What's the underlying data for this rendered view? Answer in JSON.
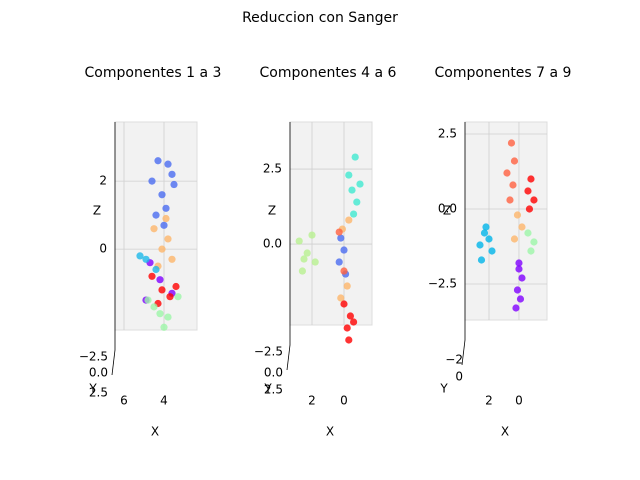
{
  "chart_data": {
    "title": "Reduccion con Sanger",
    "charts": [
      {
        "type": "scatter",
        "title": "Componentes 1 a 3",
        "xlabel": "X",
        "ylabel": "Y",
        "zlabel": "Z",
        "xlim": [
          6.45,
          2.35
        ],
        "xticks": [
          6,
          4
        ],
        "zlim": [
          -2.38,
          3.74
        ],
        "zticks": [
          2,
          0
        ],
        "yticks": [
          {
            "value": -2.5,
            "label": "−2.5"
          },
          {
            "value": 0,
            "label": "0.0"
          },
          2.5
        ],
        "series": [
          {
            "color": "#4a6cf0",
            "x": [
              4.3,
              3.8,
              4.6,
              3.5,
              4.1,
              3.9,
              4.4,
              3.6,
              4.0
            ],
            "z": [
              2.6,
              2.5,
              2.0,
              1.9,
              1.6,
              1.2,
              1.0,
              2.2,
              0.7
            ]
          },
          {
            "color": "#fdb56a",
            "x": [
              4.5,
              3.8,
              4.1,
              3.6,
              4.3,
              3.9
            ],
            "z": [
              0.6,
              0.3,
              0.0,
              -0.3,
              -0.5,
              0.9
            ]
          },
          {
            "color": "#8000ff",
            "x": [
              4.7,
              4.2,
              3.6,
              4.9
            ],
            "z": [
              -0.4,
              -0.9,
              -1.3,
              -1.5
            ]
          },
          {
            "color": "#ff0000",
            "x": [
              4.6,
              4.1,
              3.7,
              4.3,
              3.4
            ],
            "z": [
              -0.8,
              -1.2,
              -1.4,
              -1.6,
              -1.1
            ]
          },
          {
            "color": "#9cf5a8",
            "x": [
              4.8,
              4.2,
              3.8,
              4.5,
              3.3,
              4.0
            ],
            "z": [
              -1.5,
              -1.9,
              -2.0,
              -1.7,
              -1.4,
              -2.3
            ]
          },
          {
            "color": "#1cb8e8",
            "x": [
              5.2,
              4.9,
              4.4
            ],
            "z": [
              -0.2,
              -0.3,
              -0.6
            ]
          }
        ]
      },
      {
        "type": "scatter",
        "title": "Componentes 4 a 6",
        "xlabel": "X",
        "ylabel": "Y",
        "zlabel": "Z",
        "xlim": [
          3.375,
          -1.75
        ],
        "xticks": [
          2,
          0
        ],
        "zlim": [
          -2.7,
          4.07
        ],
        "zticks": [
          2.5,
          {
            "value": 0,
            "label": "0.0"
          }
        ],
        "yticks": [
          {
            "value": -2.5,
            "label": "−2.5"
          },
          {
            "value": 0,
            "label": "0.0"
          },
          2.5
        ],
        "series": [
          {
            "color": "#40e8d0",
            "x": [
              -0.7,
              -0.3,
              -1.0,
              -0.5,
              -0.8,
              -0.6
            ],
            "z": [
              2.9,
              2.3,
              2.0,
              1.8,
              1.4,
              1.0
            ]
          },
          {
            "color": "#b8f090",
            "x": [
              2.8,
              2.3,
              1.8,
              2.5,
              2.0,
              2.6
            ],
            "z": [
              0.1,
              -0.3,
              -0.6,
              -0.5,
              0.3,
              -0.9
            ]
          },
          {
            "color": "#4a6cf0",
            "x": [
              0.2,
              0.0,
              0.3,
              -0.1
            ],
            "z": [
              0.2,
              -0.2,
              -0.6,
              -1.0
            ]
          },
          {
            "color": "#fdb56a",
            "x": [
              0.1,
              -0.2,
              0.2,
              -0.3
            ],
            "z": [
              0.5,
              -1.4,
              -1.8,
              0.8
            ]
          },
          {
            "color": "#ff6040",
            "x": [
              0.3,
              0.0
            ],
            "z": [
              0.4,
              -0.9
            ]
          },
          {
            "color": "#ff0000",
            "x": [
              0.0,
              -0.4,
              -0.2,
              -0.6,
              -0.3
            ],
            "z": [
              -2.0,
              -2.4,
              -2.8,
              -2.6,
              -3.2
            ]
          }
        ]
      },
      {
        "type": "scatter",
        "title": "Componentes 7 a 9",
        "xlabel": "X",
        "ylabel": "Y",
        "zlabel": "Z",
        "xlim": [
          3.6,
          -1.87
        ],
        "xticks": [
          2,
          0
        ],
        "zlim": [
          -3.7,
          2.9
        ],
        "zticks": [
          2.5,
          {
            "value": 0,
            "label": "0.0"
          },
          {
            "value": -2.5,
            "label": "−2.5"
          }
        ],
        "yticks": [
          {
            "value": -2,
            "label": "−2"
          },
          0
        ],
        "series": [
          {
            "color": "#00b4e8",
            "x": [
              2.3,
              2.0,
              2.6,
              2.2,
              1.8,
              2.5
            ],
            "z": [
              -0.8,
              -1.0,
              -1.2,
              -0.6,
              -1.4,
              -1.7
            ]
          },
          {
            "color": "#ff6040",
            "x": [
              0.5,
              0.3,
              0.8,
              0.4,
              0.6
            ],
            "z": [
              2.2,
              1.6,
              1.2,
              0.8,
              0.3
            ]
          },
          {
            "color": "#ff0000",
            "x": [
              -0.8,
              -0.6,
              -1.0,
              -0.7
            ],
            "z": [
              1.0,
              0.6,
              0.3,
              0.0
            ]
          },
          {
            "color": "#fdb56a",
            "x": [
              0.1,
              -0.2,
              0.3
            ],
            "z": [
              -0.2,
              -0.6,
              -1.0
            ]
          },
          {
            "color": "#9cf5a8",
            "x": [
              -0.6,
              -1.0,
              -0.8
            ],
            "z": [
              -0.8,
              -1.1,
              -1.4
            ]
          },
          {
            "color": "#8000ff",
            "x": [
              0.0,
              -0.2,
              0.1,
              -0.1,
              0.2,
              0.0
            ],
            "z": [
              -1.8,
              -2.3,
              -2.7,
              -3.0,
              -3.3,
              -2.0
            ]
          }
        ]
      }
    ]
  }
}
